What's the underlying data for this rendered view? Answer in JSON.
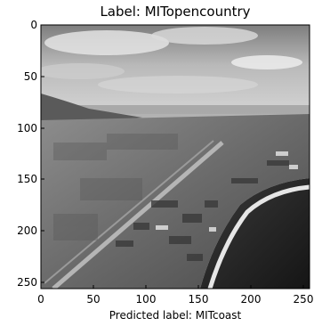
{
  "figure": {
    "title": "Label: MITopencountry",
    "xlabel": "Predicted label: MITcoast"
  },
  "axes": {
    "x_ticks": [
      "0",
      "50",
      "100",
      "150",
      "200",
      "250"
    ],
    "y_ticks": [
      "0",
      "50",
      "100",
      "150",
      "200",
      "250"
    ],
    "x_range": [
      0,
      256
    ],
    "y_range": [
      0,
      256
    ],
    "y_inverted": true
  },
  "image": {
    "description_colormap": "grayscale",
    "frame_color": "#000000"
  }
}
